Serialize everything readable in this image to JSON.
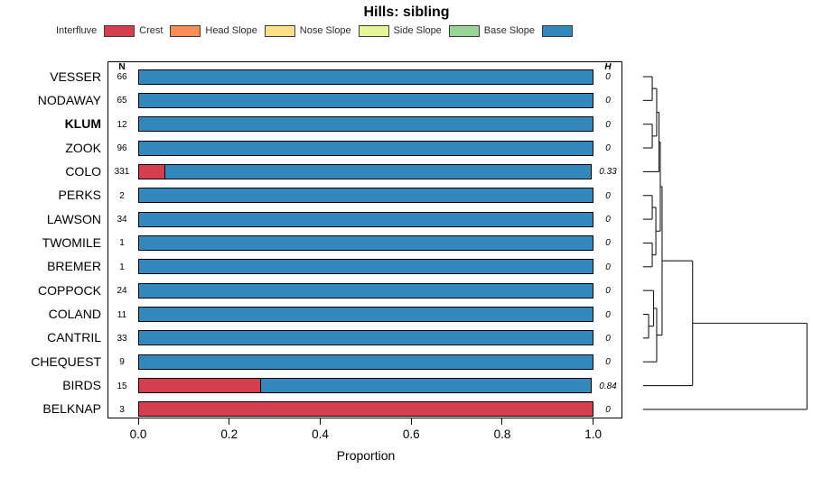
{
  "title": "Hills: sibling",
  "legend": {
    "items": [
      {
        "label": "Interfluve",
        "color": "#D53E4F"
      },
      {
        "label": "Crest",
        "color": "#FC8D59"
      },
      {
        "label": "Head Slope",
        "color": "#FEE08B"
      },
      {
        "label": "Nose Slope",
        "color": "#E6F598"
      },
      {
        "label": "Side Slope",
        "color": "#99D594"
      },
      {
        "label": "Base Slope",
        "color": "#3288BD"
      }
    ]
  },
  "columns": {
    "n_header": "N",
    "h_header": "H"
  },
  "axis": {
    "xlabel": "Proportion",
    "ticks": [
      "0.0",
      "0.2",
      "0.4",
      "0.6",
      "0.8",
      "1.0"
    ]
  },
  "rows": [
    {
      "name": "VESSER",
      "n": "66",
      "h": "0",
      "bold": false
    },
    {
      "name": "NODAWAY",
      "n": "65",
      "h": "0",
      "bold": false
    },
    {
      "name": "KLUM",
      "n": "12",
      "h": "0",
      "bold": true
    },
    {
      "name": "ZOOK",
      "n": "96",
      "h": "0",
      "bold": false
    },
    {
      "name": "COLO",
      "n": "331",
      "h": "0.33",
      "bold": false
    },
    {
      "name": "PERKS",
      "n": "2",
      "h": "0",
      "bold": false
    },
    {
      "name": "LAWSON",
      "n": "34",
      "h": "0",
      "bold": false
    },
    {
      "name": "TWOMILE",
      "n": "1",
      "h": "0",
      "bold": false
    },
    {
      "name": "BREMER",
      "n": "1",
      "h": "0",
      "bold": false
    },
    {
      "name": "COPPOCK",
      "n": "24",
      "h": "0",
      "bold": false
    },
    {
      "name": "COLAND",
      "n": "11",
      "h": "0",
      "bold": false
    },
    {
      "name": "CANTRIL",
      "n": "33",
      "h": "0",
      "bold": false
    },
    {
      "name": "CHEQUEST",
      "n": "9",
      "h": "0",
      "bold": false
    },
    {
      "name": "BIRDS",
      "n": "15",
      "h": "0.84",
      "bold": false
    },
    {
      "name": "BELKNAP",
      "n": "3",
      "h": "0",
      "bold": false
    }
  ],
  "chart_data": {
    "type": "bar",
    "orientation": "horizontal",
    "stacked": true,
    "title": "Hills: sibling",
    "xlabel": "Proportion",
    "xlim": [
      0,
      1
    ],
    "x_ticks": [
      0.0,
      0.2,
      0.4,
      0.6,
      0.8,
      1.0
    ],
    "legend_position": "top",
    "categories": [
      "VESSER",
      "NODAWAY",
      "KLUM",
      "ZOOK",
      "COLO",
      "PERKS",
      "LAWSON",
      "TWOMILE",
      "BREMER",
      "COPPOCK",
      "COLAND",
      "CANTRIL",
      "CHEQUEST",
      "BIRDS",
      "BELKNAP"
    ],
    "n_values": [
      66,
      65,
      12,
      96,
      331,
      2,
      34,
      1,
      1,
      24,
      11,
      33,
      9,
      15,
      3
    ],
    "h_shannon": [
      0,
      0,
      0,
      0,
      0.33,
      0,
      0,
      0,
      0,
      0,
      0,
      0,
      0,
      0.84,
      0
    ],
    "series": [
      {
        "name": "Interfluve",
        "color": "#D53E4F",
        "values": [
          0,
          0,
          0,
          0,
          0.06,
          0,
          0,
          0,
          0,
          0,
          0,
          0,
          0,
          0.27,
          1.0
        ]
      },
      {
        "name": "Crest",
        "color": "#FC8D59",
        "values": [
          0,
          0,
          0,
          0,
          0,
          0,
          0,
          0,
          0,
          0,
          0,
          0,
          0,
          0,
          0
        ]
      },
      {
        "name": "Head Slope",
        "color": "#FEE08B",
        "values": [
          0,
          0,
          0,
          0,
          0,
          0,
          0,
          0,
          0,
          0,
          0,
          0,
          0,
          0,
          0
        ]
      },
      {
        "name": "Nose Slope",
        "color": "#E6F598",
        "values": [
          0,
          0,
          0,
          0,
          0,
          0,
          0,
          0,
          0,
          0,
          0,
          0,
          0,
          0,
          0
        ]
      },
      {
        "name": "Side Slope",
        "color": "#99D594",
        "values": [
          0,
          0,
          0,
          0,
          0,
          0,
          0,
          0,
          0,
          0,
          0,
          0,
          0,
          0,
          0
        ]
      },
      {
        "name": "Base Slope",
        "color": "#3288BD",
        "values": [
          1,
          1,
          1,
          1,
          0.94,
          1,
          1,
          1,
          1,
          1,
          1,
          1,
          1,
          0.73,
          0
        ]
      }
    ],
    "dendrogram": {
      "leaf_order": [
        "VESSER",
        "NODAWAY",
        "KLUM",
        "ZOOK",
        "COLO",
        "PERKS",
        "LAWSON",
        "TWOMILE",
        "BREMER",
        "COPPOCK",
        "COLAND",
        "CANTRIL",
        "CHEQUEST",
        "BIRDS",
        "BELKNAP"
      ],
      "merges": [
        {
          "a": "L0",
          "b": "L1",
          "h": 0.057
        },
        {
          "a": "L2",
          "b": "L3",
          "h": 0.057
        },
        {
          "a": "M0",
          "b": "M1",
          "h": 0.084
        },
        {
          "a": "M2",
          "b": "L4",
          "h": 0.098
        },
        {
          "a": "L5",
          "b": "L6",
          "h": 0.057
        },
        {
          "a": "L7",
          "b": "L8",
          "h": 0.057
        },
        {
          "a": "M4",
          "b": "M5",
          "h": 0.079
        },
        {
          "a": "L10",
          "b": "L11",
          "h": 0.035
        },
        {
          "a": "L9",
          "b": "M7",
          "h": 0.065
        },
        {
          "a": "M8",
          "b": "L12",
          "h": 0.084
        },
        {
          "a": "M3",
          "b": "M6",
          "h": 0.106
        },
        {
          "a": "M10",
          "b": "M9",
          "h": 0.117
        },
        {
          "a": "M11",
          "b": "L13",
          "h": 0.303
        },
        {
          "a": "M12",
          "b": "L14",
          "h": 1.0
        }
      ]
    }
  }
}
